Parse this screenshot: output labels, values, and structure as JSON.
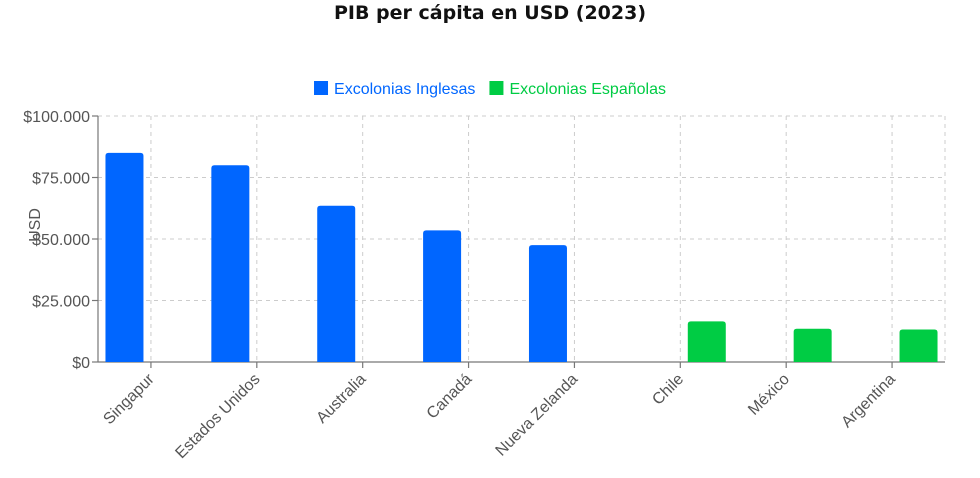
{
  "chart_data": {
    "type": "bar",
    "title": "PIB per cápita en USD (2023)",
    "ylabel": "USD",
    "xlabel": "",
    "ylim": [
      0,
      100000
    ],
    "yticks": [
      0,
      25000,
      50000,
      75000,
      100000
    ],
    "ytick_labels": [
      "$0",
      "$25.000",
      "$50.000",
      "$75.000",
      "$100.000"
    ],
    "categories": [
      "Singapur",
      "Estados Unidos",
      "Australia",
      "Canadá",
      "Nueva Zelanda",
      "Chile",
      "México",
      "Argentina"
    ],
    "series": [
      {
        "name": "Excolonias Inglesas",
        "color": "#0066ff",
        "values": [
          85000,
          80000,
          63500,
          53500,
          47500,
          null,
          null,
          null
        ]
      },
      {
        "name": "Excolonias Españolas",
        "color": "#00cc44",
        "values": [
          null,
          null,
          null,
          null,
          null,
          16500,
          13500,
          13200
        ]
      }
    ],
    "legend_position": "top-center",
    "grid": true
  }
}
